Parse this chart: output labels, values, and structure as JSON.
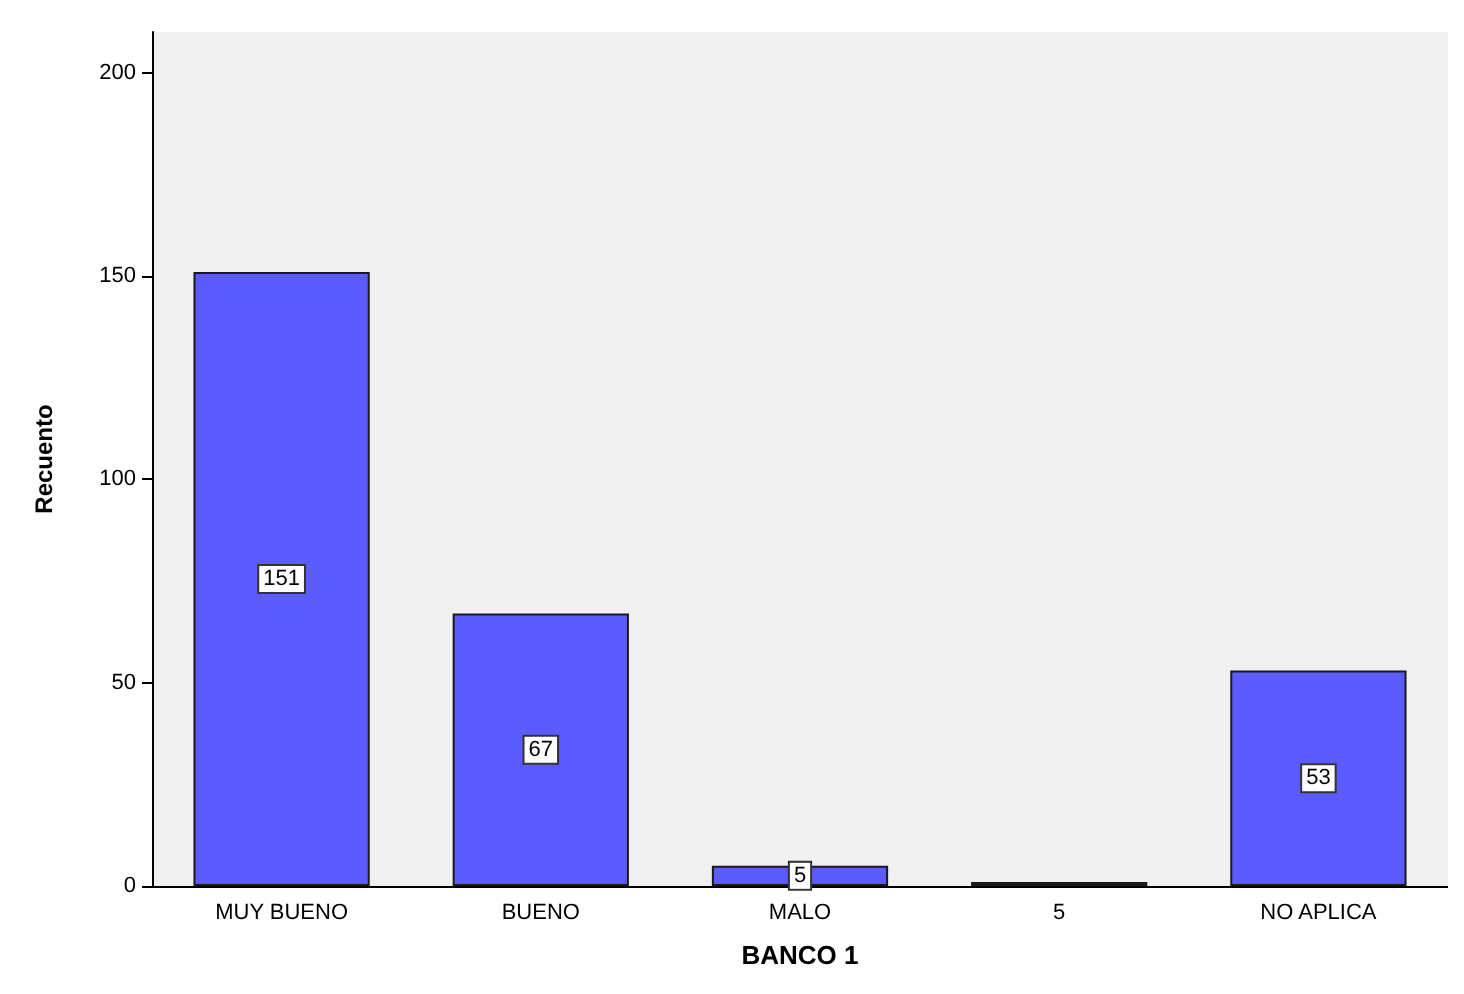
{
  "chart_data": {
    "type": "bar",
    "xlabel": "BANCO 1",
    "ylabel": "Recuento",
    "categories": [
      "MUY BUENO",
      "BUENO",
      "MALO",
      "5",
      "NO APLICA"
    ],
    "values": [
      151,
      67,
      5,
      1,
      53
    ],
    "value_labels": [
      "151",
      "67",
      "5",
      null,
      "53"
    ],
    "color": "#5b5bff",
    "ylim": [
      0,
      210
    ],
    "yticks": [
      0,
      50,
      100,
      150,
      200
    ],
    "grid": false
  }
}
